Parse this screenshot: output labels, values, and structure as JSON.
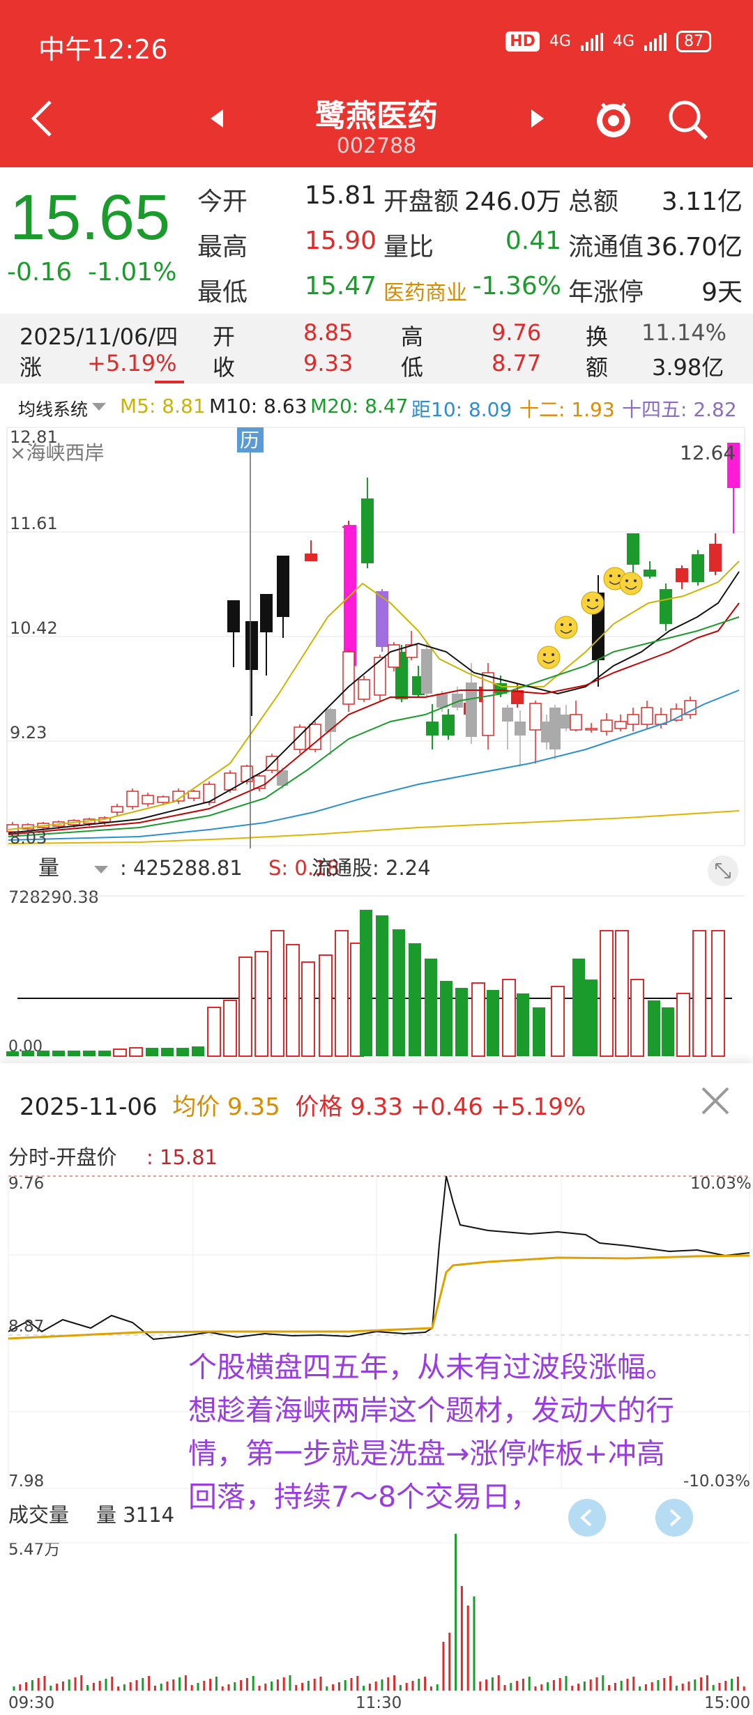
{
  "status": {
    "time": "中午12:26",
    "network": "4G",
    "battery": "87",
    "hd": "HD"
  },
  "header": {
    "name": "鹭燕医药",
    "code": "002788"
  },
  "quote": {
    "price": "15.65",
    "change": "-0.16",
    "change_pct": "-1.01%",
    "rows": [
      {
        "l1": "今开",
        "v1": "15.81",
        "l2": "开盘额",
        "v2": "246.0万",
        "l3": "总额",
        "v3": "3.11亿"
      },
      {
        "l1": "最高",
        "v1": "15.90",
        "l2": "量比",
        "v2": "0.41",
        "l3": "流通值",
        "v3": "36.70亿"
      },
      {
        "l1": "最低",
        "v1": "15.47",
        "l2": "医药商业",
        "v2": "-1.36%",
        "l3": "年涨停",
        "v3": "9天"
      }
    ]
  },
  "day_info": {
    "date": "2025/11/06/四",
    "change_label": "涨",
    "change": "+5.19%",
    "open_label": "开",
    "open": "8.85",
    "close_label": "收",
    "close": "9.33",
    "high_label": "高",
    "high": "9.76",
    "low_label": "低",
    "low": "8.77",
    "turnover_label": "换",
    "turnover": "11.14%",
    "amount_label": "额",
    "amount": "3.98亿"
  },
  "ma_legend": {
    "system": "均线系统",
    "m5": "M5: 8.81",
    "m10": "M10: 8.63",
    "m20": "M20: 8.47",
    "dist10": "距10: 8.09",
    "twelve": "十二: 1.93",
    "fourteen_five": "十四五: 2.82",
    "colors": {
      "m5": "#c9b400",
      "m10": "#222222",
      "m20": "#1a9b2c",
      "dist": "#2a8fd0",
      "twelve": "#e08a00",
      "fourteen": "#8a6dc0"
    }
  },
  "kchart": {
    "ymax": "12.81",
    "y2": "11.61",
    "y3": "10.42",
    "y4": "9.23",
    "ymin": "8.03",
    "topic": "×海峡西岸",
    "last_high": "12.64",
    "marker": "历"
  },
  "volume": {
    "label": "量",
    "value": ": 425288.81",
    "s_label": "S: 0.18",
    "float": "流通股: 2.24",
    "ymax": "728290.38",
    "ymin": "0.00"
  },
  "intraday": {
    "date": "2025-11-06",
    "avg_label": "均价",
    "avg": "9.35",
    "price_label": "价格",
    "price": "9.33",
    "chg": "+0.46",
    "chg_pct": "+5.19%",
    "open_label": "分时-开盘价",
    "open": ": 15.81",
    "ymax": "9.76",
    "ymid": "8.87",
    "ymin": "7.98",
    "pct_max": "10.03%",
    "pct_min": "-10.03%",
    "vol_label": "成交量",
    "vol_value": "量 3114",
    "vol_max": "5.47万",
    "t_start": "09:30",
    "t_mid": "11:30",
    "t_end": "15:00"
  },
  "annotation": "个股横盘四五年，从未有过波段涨幅。想趁着海峡两岸这个题材，发动大的行情，第一步就是洗盘→涨停炸板+冲高回落，持续7～8个交易日，"
}
